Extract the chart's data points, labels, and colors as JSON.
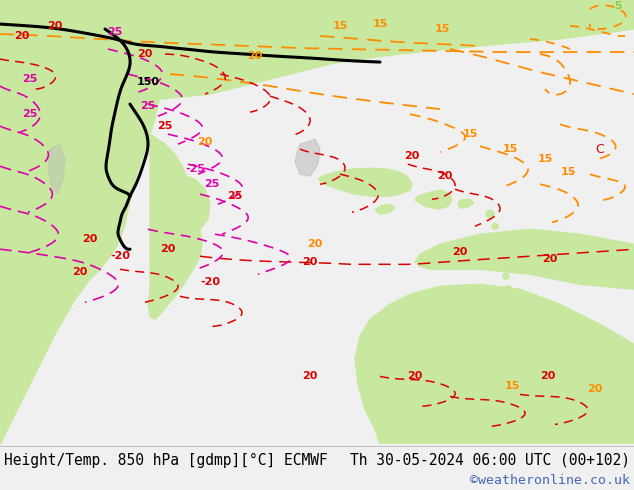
{
  "title_left": "Height/Temp. 850 hPa [gdmp][°C] ECMWF",
  "title_right": "Th 30-05-2024 06:00 UTC (00+102)",
  "credit": "©weatheronline.co.uk",
  "ocean_color": "#d2d2d2",
  "land_green_color": "#c8e8a0",
  "land_gray_color": "#b8b8b8",
  "footer_bg": "#f0f0f0",
  "footer_text_color": "#000000",
  "credit_color": "#4466bb",
  "title_fontsize": 10.5,
  "credit_fontsize": 9.5,
  "fig_width": 6.34,
  "fig_height": 4.9,
  "dpi": 100
}
